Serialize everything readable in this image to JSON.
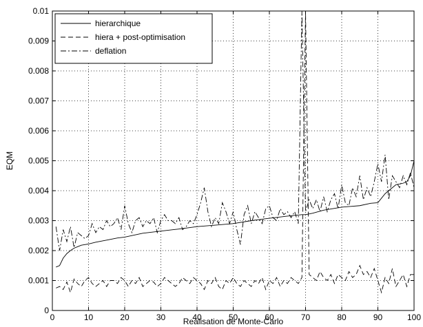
{
  "chart_data": {
    "type": "line",
    "title": "",
    "xlabel": "Realisation de Monte-Carlo",
    "ylabel": "EQM",
    "xlim": [
      0,
      100
    ],
    "ylim": [
      0,
      0.01
    ],
    "xticks": [
      "0",
      "10",
      "20",
      "30",
      "40",
      "50",
      "60",
      "70",
      "80",
      "90",
      "100"
    ],
    "yticks": [
      "0",
      "0.001",
      "0.002",
      "0.003",
      "0.004",
      "0.005",
      "0.006",
      "0.007",
      "0.008",
      "0.009",
      "0.01"
    ],
    "grid": true,
    "legend_position": "top-left",
    "series": [
      {
        "name": "hierarchique",
        "style": "solid",
        "x": [
          1,
          2,
          3,
          4,
          5,
          6,
          7,
          8,
          9,
          10,
          12,
          15,
          18,
          20,
          25,
          30,
          35,
          40,
          45,
          50,
          55,
          60,
          65,
          69,
          70,
          72,
          75,
          80,
          85,
          88,
          90,
          92,
          93,
          95,
          97,
          98,
          99,
          100
        ],
        "y": [
          0.00145,
          0.0015,
          0.00175,
          0.0019,
          0.002,
          0.00208,
          0.00213,
          0.00218,
          0.0022,
          0.00222,
          0.00228,
          0.00235,
          0.00242,
          0.00245,
          0.00258,
          0.00265,
          0.00272,
          0.0028,
          0.00285,
          0.0029,
          0.003,
          0.00308,
          0.00315,
          0.0032,
          0.0032,
          0.00325,
          0.00335,
          0.00345,
          0.0035,
          0.00358,
          0.0036,
          0.0039,
          0.004,
          0.0042,
          0.00425,
          0.0043,
          0.0045,
          0.005
        ]
      },
      {
        "name": "hiera + post-optimisation",
        "style": "dashed",
        "x": [
          1,
          2,
          3,
          4,
          5,
          6,
          7,
          8,
          9,
          10,
          11,
          12,
          13,
          14,
          15,
          16,
          17,
          18,
          19,
          20,
          21,
          22,
          23,
          24,
          25,
          26,
          27,
          28,
          29,
          30,
          31,
          32,
          33,
          34,
          35,
          36,
          37,
          38,
          39,
          40,
          41,
          42,
          43,
          44,
          45,
          46,
          47,
          48,
          49,
          50,
          51,
          52,
          53,
          54,
          55,
          56,
          57,
          58,
          59,
          60,
          61,
          62,
          63,
          64,
          65,
          66,
          67,
          68,
          69,
          70,
          71,
          72,
          73,
          74,
          75,
          76,
          77,
          78,
          79,
          80,
          81,
          82,
          83,
          84,
          85,
          86,
          87,
          88,
          89,
          90,
          91,
          92,
          93,
          94,
          95,
          96,
          97,
          98,
          99,
          100
        ],
        "y": [
          0.00075,
          0.0008,
          0.0007,
          0.00095,
          0.0006,
          0.00105,
          0.0009,
          0.0008,
          0.001,
          0.0011,
          0.0009,
          0.0008,
          0.0009,
          0.001,
          0.0008,
          0.001,
          0.001,
          0.0009,
          0.0011,
          0.001,
          0.0008,
          0.001,
          0.0009,
          0.0011,
          0.0008,
          0.0009,
          0.001,
          0.00095,
          0.0008,
          0.0009,
          0.0011,
          0.001,
          0.0009,
          0.0008,
          0.0009,
          0.0011,
          0.001,
          0.0009,
          0.0011,
          0.001,
          0.0009,
          0.0007,
          0.001,
          0.0009,
          0.0011,
          0.0008,
          0.0007,
          0.001,
          0.0009,
          0.0011,
          0.0009,
          0.0008,
          0.001,
          0.0009,
          0.0008,
          0.001,
          0.0009,
          0.0011,
          0.0007,
          0.001,
          0.0009,
          0.0011,
          0.0008,
          0.001,
          0.0009,
          0.0011,
          0.001,
          0.0009,
          0.0011,
          0.01,
          0.0012,
          0.0011,
          0.001,
          0.0013,
          0.0011,
          0.001,
          0.0012,
          0.0009,
          0.0012,
          0.0011,
          0.001,
          0.0013,
          0.0011,
          0.0012,
          0.0015,
          0.0012,
          0.0013,
          0.0011,
          0.0014,
          0.001,
          0.0006,
          0.0011,
          0.0009,
          0.0014,
          0.0008,
          0.001,
          0.0012,
          0.0008,
          0.0012,
          0.0012
        ]
      },
      {
        "name": "deflation",
        "style": "dashdot",
        "x": [
          1,
          2,
          3,
          4,
          5,
          6,
          7,
          8,
          9,
          10,
          11,
          12,
          13,
          14,
          15,
          16,
          17,
          18,
          19,
          20,
          21,
          22,
          23,
          24,
          25,
          26,
          27,
          28,
          29,
          30,
          31,
          32,
          33,
          34,
          35,
          36,
          37,
          38,
          39,
          40,
          41,
          42,
          43,
          44,
          45,
          46,
          47,
          48,
          49,
          50,
          51,
          52,
          53,
          54,
          55,
          56,
          57,
          58,
          59,
          60,
          61,
          62,
          63,
          64,
          65,
          66,
          67,
          68,
          69,
          70,
          71,
          72,
          73,
          74,
          75,
          76,
          77,
          78,
          79,
          80,
          81,
          82,
          83,
          84,
          85,
          86,
          87,
          88,
          89,
          90,
          91,
          92,
          93,
          94,
          95,
          96,
          97,
          98,
          99,
          100
        ],
        "y": [
          0.0028,
          0.002,
          0.0027,
          0.0023,
          0.0028,
          0.0021,
          0.0026,
          0.0025,
          0.0024,
          0.0025,
          0.0029,
          0.0026,
          0.0028,
          0.0027,
          0.003,
          0.0028,
          0.0029,
          0.0031,
          0.0027,
          0.0035,
          0.0029,
          0.0026,
          0.003,
          0.0031,
          0.0028,
          0.003,
          0.0029,
          0.0031,
          0.0026,
          0.003,
          0.0032,
          0.003,
          0.003,
          0.0029,
          0.0031,
          0.0027,
          0.0028,
          0.003,
          0.0029,
          0.0032,
          0.0036,
          0.0041,
          0.0033,
          0.0028,
          0.0031,
          0.0029,
          0.0036,
          0.0033,
          0.0029,
          0.0033,
          0.0027,
          0.0022,
          0.0032,
          0.0035,
          0.0029,
          0.0033,
          0.0031,
          0.0029,
          0.0034,
          0.0035,
          0.0031,
          0.003,
          0.0034,
          0.0032,
          0.0033,
          0.0031,
          0.0033,
          0.0029,
          0.01,
          0.0033,
          0.0037,
          0.0034,
          0.0037,
          0.0033,
          0.0038,
          0.0033,
          0.0037,
          0.0039,
          0.0034,
          0.0042,
          0.0036,
          0.0035,
          0.0041,
          0.0038,
          0.0045,
          0.0037,
          0.0041,
          0.0038,
          0.0043,
          0.0049,
          0.0043,
          0.0052,
          0.0037,
          0.0045,
          0.0043,
          0.0041,
          0.0045,
          0.0042,
          0.0046,
          0.0041
        ]
      }
    ]
  }
}
